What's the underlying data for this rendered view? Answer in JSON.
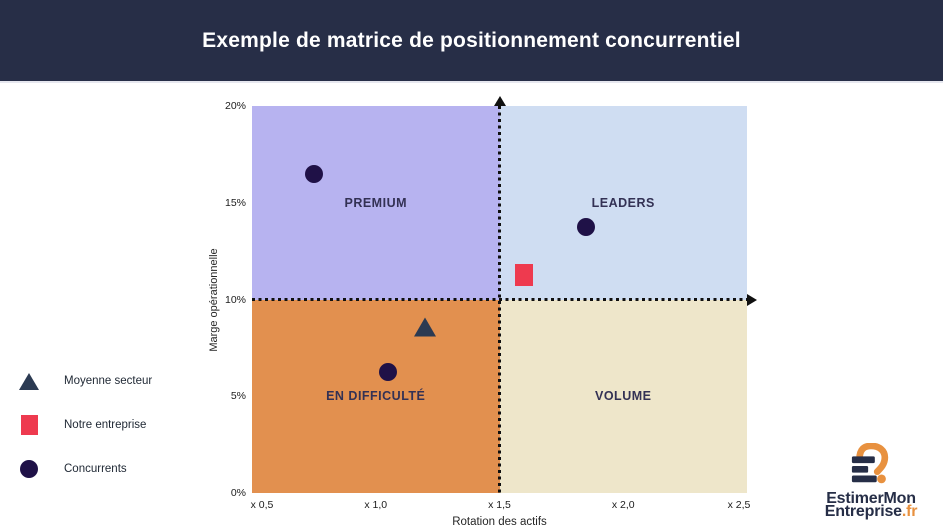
{
  "header": {
    "title": "Exemple de matrice de positionnement concurrentiel"
  },
  "colors": {
    "header_bg": "#272e47",
    "quadrant_premium": "#b7b3f0",
    "quadrant_leaders": "#cfddf2",
    "quadrant_difficulte": "#e2904f",
    "quadrant_volume": "#eee6ca",
    "marker_concurrents": "#1f1147",
    "marker_entreprise": "#ee3a4f",
    "marker_moyenne": "#2b3a52",
    "reference_line": "#101010",
    "logo_navy": "#262e47",
    "logo_orange": "#e8913f"
  },
  "legend": {
    "items": [
      {
        "marker": "triangle",
        "color": "#2b3a52",
        "label": "Moyenne secteur"
      },
      {
        "marker": "square",
        "color": "#ee3a4f",
        "label": "Notre entreprise"
      },
      {
        "marker": "circle",
        "color": "#1f1147",
        "label": "Concurrents"
      }
    ]
  },
  "logo": {
    "icon": "e2-monogram-icon",
    "line1": "EstimerMon",
    "line2": "Entreprise",
    "suffix": ".fr"
  },
  "chart_data": {
    "type": "scatter",
    "title": "Exemple de matrice de positionnement concurrentiel",
    "xlabel": "Rotation des actifs",
    "ylabel": "Marge opérationnelle",
    "xlim": [
      0.5,
      2.5
    ],
    "ylim": [
      0,
      20
    ],
    "grid": false,
    "legend_position": "left-outside",
    "x_ticks": [
      {
        "value": 0.5,
        "label": "x 0,5"
      },
      {
        "value": 1.0,
        "label": "x 1,0"
      },
      {
        "value": 1.5,
        "label": "x 1,5"
      },
      {
        "value": 2.0,
        "label": "x 2,0"
      },
      {
        "value": 2.5,
        "label": "x 2,5"
      }
    ],
    "y_ticks": [
      {
        "value": 0,
        "label": "0%"
      },
      {
        "value": 5,
        "label": "5%"
      },
      {
        "value": 10,
        "label": "10%"
      },
      {
        "value": 15,
        "label": "15%"
      },
      {
        "value": 20,
        "label": "20%"
      }
    ],
    "reference_lines": {
      "vertical_x": 1.5,
      "horizontal_y": 10
    },
    "quadrants": [
      {
        "name": "PREMIUM",
        "position": "top-left",
        "color": "#b7b3f0"
      },
      {
        "name": "LEADERS",
        "position": "top-right",
        "color": "#cfddf2"
      },
      {
        "name": "EN DIFFICULTÉ",
        "position": "bottom-left",
        "color": "#e2904f"
      },
      {
        "name": "VOLUME",
        "position": "bottom-right",
        "color": "#eee6ca"
      }
    ],
    "series": [
      {
        "name": "Moyenne secteur",
        "marker": "triangle",
        "color": "#2b3a52",
        "points": [
          {
            "x": 1.2,
            "y": 8.6
          }
        ]
      },
      {
        "name": "Notre entreprise",
        "marker": "square",
        "color": "#ee3a4f",
        "points": [
          {
            "x": 1.6,
            "y": 11.25
          }
        ]
      },
      {
        "name": "Concurrents",
        "marker": "circle",
        "color": "#1f1147",
        "points": [
          {
            "x": 0.75,
            "y": 16.5
          },
          {
            "x": 1.85,
            "y": 13.75
          },
          {
            "x": 1.05,
            "y": 6.25
          }
        ]
      }
    ]
  }
}
